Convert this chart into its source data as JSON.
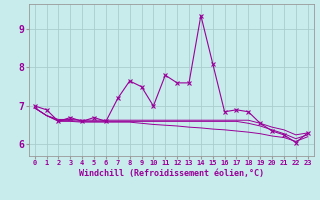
{
  "xlabel": "Windchill (Refroidissement éolien,°C)",
  "background_color": "#c8ecec",
  "line_color": "#990099",
  "grid_color": "#aacccc",
  "x_values": [
    0,
    1,
    2,
    3,
    4,
    5,
    6,
    7,
    8,
    9,
    10,
    11,
    12,
    13,
    14,
    15,
    16,
    17,
    18,
    19,
    20,
    21,
    22,
    23
  ],
  "series1": [
    7.0,
    6.9,
    6.6,
    6.7,
    6.6,
    6.7,
    6.6,
    7.2,
    7.65,
    7.5,
    7.0,
    7.8,
    7.6,
    7.6,
    9.35,
    8.1,
    6.85,
    6.9,
    6.85,
    6.55,
    6.35,
    6.25,
    6.05,
    6.3
  ],
  "series2": [
    6.95,
    6.75,
    6.65,
    6.65,
    6.63,
    6.63,
    6.63,
    6.63,
    6.63,
    6.63,
    6.63,
    6.63,
    6.63,
    6.63,
    6.63,
    6.63,
    6.63,
    6.63,
    6.63,
    6.55,
    6.45,
    6.38,
    6.25,
    6.3
  ],
  "series3": [
    6.95,
    6.75,
    6.62,
    6.62,
    6.6,
    6.6,
    6.6,
    6.6,
    6.6,
    6.6,
    6.6,
    6.6,
    6.6,
    6.6,
    6.6,
    6.6,
    6.6,
    6.6,
    6.55,
    6.48,
    6.38,
    6.28,
    6.15,
    6.25
  ],
  "series4": [
    6.95,
    6.75,
    6.6,
    6.6,
    6.58,
    6.58,
    6.58,
    6.58,
    6.58,
    6.55,
    6.52,
    6.5,
    6.48,
    6.45,
    6.43,
    6.4,
    6.38,
    6.35,
    6.32,
    6.28,
    6.22,
    6.18,
    6.08,
    6.2
  ],
  "ylim": [
    5.7,
    9.65
  ],
  "yticks": [
    6,
    7,
    8,
    9
  ],
  "xticks": [
    0,
    1,
    2,
    3,
    4,
    5,
    6,
    7,
    8,
    9,
    10,
    11,
    12,
    13,
    14,
    15,
    16,
    17,
    18,
    19,
    20,
    21,
    22,
    23
  ]
}
